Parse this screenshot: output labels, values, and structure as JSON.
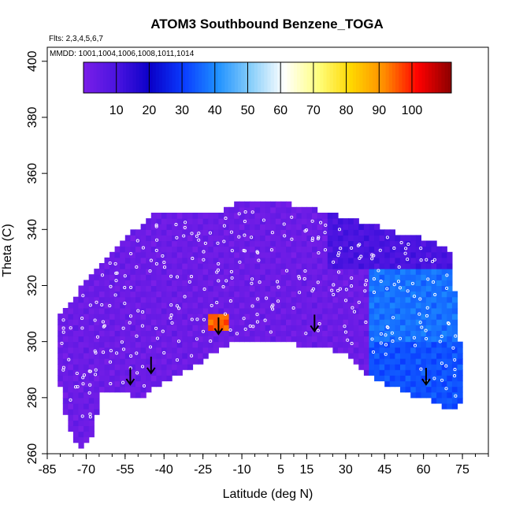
{
  "chart_data": {
    "type": "heatmap",
    "title": "ATOM3 Southbound Benzene_TOGA",
    "flights_note": "Flts: 2,3,4,5,6,7",
    "dates_note": "MMDD: 1001,1004,1006,1008,1011,1014",
    "xlabel": "Latitude (deg N)",
    "ylabel": "Theta (C)",
    "xlim": [
      -85,
      85
    ],
    "ylim": [
      260,
      405
    ],
    "x_ticks": [
      -85,
      -70,
      -55,
      -40,
      -25,
      -10,
      5,
      15,
      30,
      45,
      60,
      75
    ],
    "y_ticks": [
      260,
      280,
      300,
      320,
      340,
      360,
      380,
      400
    ],
    "colorbar": {
      "range": [
        0,
        112
      ],
      "tick_values": [
        10,
        20,
        30,
        40,
        50,
        60,
        70,
        80,
        90,
        100
      ],
      "colors": [
        "#7a1fe8",
        "#4a14e0",
        "#0a00c8",
        "#0a3cff",
        "#1e90ff",
        "#87cefa",
        "#ffffff",
        "#ffff80",
        "#ffd700",
        "#ff8c00",
        "#ff0000",
        "#8b0000"
      ]
    },
    "tropopause_arrows": [
      {
        "lat": -53,
        "theta": 285
      },
      {
        "lat": -45,
        "theta": 289
      },
      {
        "lat": -19,
        "theta": 303
      },
      {
        "lat": 18,
        "theta": 304
      },
      {
        "lat": 61,
        "theta": 285
      }
    ],
    "field": {
      "upper_boundary": [
        [
          -80,
          309
        ],
        [
          -75,
          313
        ],
        [
          -70,
          322
        ],
        [
          -65,
          326
        ],
        [
          -60,
          331
        ],
        [
          -55,
          336
        ],
        [
          -50,
          340
        ],
        [
          -45,
          344
        ],
        [
          -40,
          345
        ],
        [
          -30,
          345
        ],
        [
          -20,
          345
        ],
        [
          -10,
          349
        ],
        [
          0,
          349
        ],
        [
          10,
          348
        ],
        [
          20,
          346
        ],
        [
          30,
          343
        ],
        [
          40,
          341
        ],
        [
          50,
          338
        ],
        [
          60,
          336
        ],
        [
          65,
          334
        ],
        [
          70,
          331
        ],
        [
          72,
          318
        ],
        [
          73,
          308
        ],
        [
          74,
          300
        ],
        [
          73,
          278
        ]
      ],
      "lower_boundary": [
        [
          -80,
          285
        ],
        [
          -77,
          270
        ],
        [
          -72,
          262
        ],
        [
          -68,
          267
        ],
        [
          -64,
          282
        ],
        [
          -55,
          283
        ],
        [
          -50,
          280
        ],
        [
          -45,
          284
        ],
        [
          -40,
          287
        ],
        [
          -33,
          290
        ],
        [
          -25,
          294
        ],
        [
          -18,
          299
        ],
        [
          -10,
          301
        ],
        [
          0,
          301
        ],
        [
          10,
          300
        ],
        [
          20,
          299
        ],
        [
          30,
          297
        ],
        [
          35,
          292
        ],
        [
          40,
          288
        ],
        [
          45,
          286
        ],
        [
          50,
          284
        ],
        [
          55,
          282
        ],
        [
          60,
          281
        ],
        [
          65,
          279
        ],
        [
          70,
          277
        ],
        [
          73,
          278
        ]
      ],
      "regions": [
        {
          "name": "southern-hemisphere-background",
          "value": 3
        },
        {
          "name": "northern-upper-dark-band",
          "value": 10
        },
        {
          "name": "northern-lower-plume",
          "value": 33
        },
        {
          "name": "northern-mid-plume",
          "value": 37
        },
        {
          "name": "hotspot-near-minus-20",
          "value": 95
        }
      ]
    }
  }
}
